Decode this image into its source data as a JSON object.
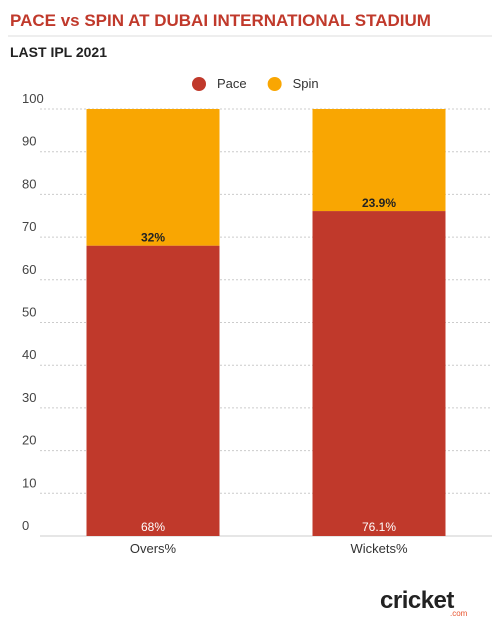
{
  "chart_data": {
    "type": "stacked_bar",
    "title": "PACE vs SPIN AT DUBAI INTERNATIONAL STADIUM",
    "subtitle": "LAST IPL 2021",
    "categories": [
      "Overs%",
      "Wickets%"
    ],
    "series": [
      {
        "name": "Pace",
        "color": "#c0392b",
        "values": [
          68,
          76.1
        ],
        "value_labels": [
          "68%",
          "76.1%"
        ]
      },
      {
        "name": "Spin",
        "color": "#f9a602",
        "values": [
          32,
          23.9
        ],
        "value_labels": [
          "32%",
          "23.9%"
        ]
      }
    ],
    "ylim": [
      0,
      100
    ],
    "yticks": [
      0,
      10,
      20,
      30,
      40,
      50,
      60,
      70,
      80,
      90,
      100
    ],
    "grid": true,
    "legend": "top",
    "logo": {
      "text": "cricket",
      "suffix": ".com"
    }
  }
}
